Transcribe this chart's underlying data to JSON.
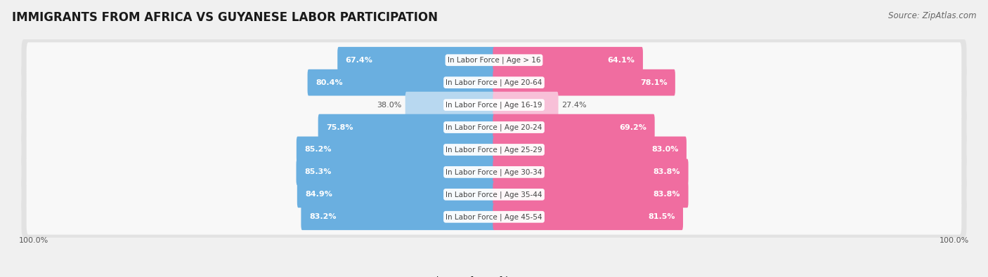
{
  "title": "IMMIGRANTS FROM AFRICA VS GUYANESE LABOR PARTICIPATION",
  "source": "Source: ZipAtlas.com",
  "categories": [
    "In Labor Force | Age > 16",
    "In Labor Force | Age 20-64",
    "In Labor Force | Age 16-19",
    "In Labor Force | Age 20-24",
    "In Labor Force | Age 25-29",
    "In Labor Force | Age 30-34",
    "In Labor Force | Age 35-44",
    "In Labor Force | Age 45-54"
  ],
  "africa_values": [
    67.4,
    80.4,
    38.0,
    75.8,
    85.2,
    85.3,
    84.9,
    83.2
  ],
  "guyanese_values": [
    64.1,
    78.1,
    27.4,
    69.2,
    83.0,
    83.8,
    83.8,
    81.5
  ],
  "africa_color": "#6aafe0",
  "africa_color_light": "#b8d8f0",
  "guyanese_color": "#f06da0",
  "guyanese_color_light": "#f8c0d8",
  "text_white": "#ffffff",
  "text_dark": "#555555",
  "background_color": "#f0f0f0",
  "row_bg_color": "#e2e2e2",
  "row_inner_color": "#f8f8f8",
  "center_label_color": "#444444",
  "max_value": 100.0,
  "legend_africa": "Immigrants from Africa",
  "legend_guyanese": "Guyanese",
  "title_fontsize": 12,
  "source_fontsize": 8.5,
  "bar_label_fontsize": 8,
  "category_fontsize": 7.5,
  "legend_fontsize": 9,
  "axis_label_fontsize": 8
}
